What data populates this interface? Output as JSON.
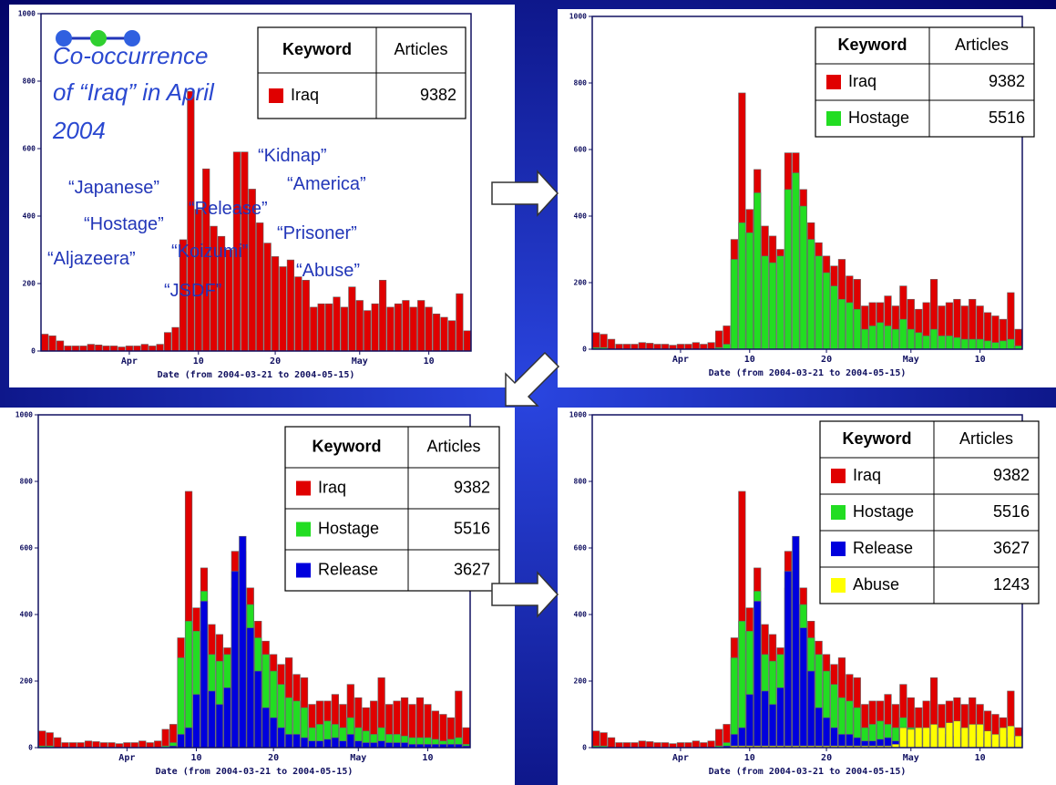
{
  "chart_data": [
    {
      "type": "bar",
      "title": [
        "Co-occurrence",
        "of “Iraq” in April",
        "2004"
      ],
      "annotations": [
        "“Japanese”",
        "“Hostage”",
        "“Aljazeera”",
        "“Koizumi”",
        "“JSDF”",
        "“Release”",
        "“Kidnap”",
        "“America”",
        "“Prisoner”",
        "“Abuse”"
      ],
      "x_label": "Date (from 2004-03-21 to 2004-05-15)",
      "legend_header": [
        "Keyword",
        "Articles"
      ],
      "categories": [
        null,
        null,
        null,
        null,
        null,
        null,
        null,
        null,
        null,
        null,
        null,
        "Apr",
        null,
        null,
        null,
        null,
        null,
        null,
        null,
        null,
        "10",
        null,
        null,
        null,
        null,
        null,
        null,
        null,
        null,
        null,
        "20",
        null,
        null,
        null,
        null,
        null,
        null,
        null,
        null,
        null,
        null,
        "May",
        null,
        null,
        null,
        null,
        null,
        null,
        null,
        null,
        "10",
        null,
        null,
        null,
        null,
        null
      ],
      "ylim": [
        0,
        1000
      ],
      "yticks": [
        0,
        200,
        400,
        600,
        800,
        1000
      ],
      "series": [
        {
          "name": "Iraq",
          "color": "#e00000",
          "total": 9382,
          "values": [
            50,
            45,
            30,
            15,
            15,
            15,
            20,
            18,
            15,
            15,
            12,
            15,
            15,
            20,
            15,
            20,
            55,
            70,
            330,
            770,
            420,
            540,
            370,
            340,
            300,
            590,
            590,
            480,
            380,
            320,
            280,
            250,
            270,
            220,
            210,
            130,
            140,
            140,
            160,
            130,
            190,
            150,
            120,
            140,
            210,
            130,
            140,
            150,
            130,
            150,
            130,
            110,
            100,
            90,
            170,
            60
          ]
        }
      ]
    },
    {
      "type": "bar",
      "x_label": "Date (from 2004-03-21 to 2004-05-15)",
      "legend_header": [
        "Keyword",
        "Articles"
      ],
      "categories": [
        null,
        null,
        null,
        null,
        null,
        null,
        null,
        null,
        null,
        null,
        null,
        "Apr",
        null,
        null,
        null,
        null,
        null,
        null,
        null,
        null,
        "10",
        null,
        null,
        null,
        null,
        null,
        null,
        null,
        null,
        null,
        "20",
        null,
        null,
        null,
        null,
        null,
        null,
        null,
        null,
        null,
        null,
        "May",
        null,
        null,
        null,
        null,
        null,
        null,
        null,
        null,
        "10",
        null,
        null,
        null,
        null,
        null
      ],
      "ylim": [
        0,
        1000
      ],
      "yticks": [
        0,
        200,
        400,
        600,
        800,
        1000
      ],
      "series": [
        {
          "name": "Iraq",
          "color": "#e00000",
          "total": 9382,
          "values": [
            50,
            45,
            30,
            15,
            15,
            15,
            20,
            18,
            15,
            15,
            12,
            15,
            15,
            20,
            15,
            20,
            55,
            70,
            330,
            770,
            420,
            540,
            370,
            340,
            300,
            590,
            590,
            480,
            380,
            320,
            280,
            250,
            270,
            220,
            210,
            130,
            140,
            140,
            160,
            130,
            190,
            150,
            120,
            140,
            210,
            130,
            140,
            150,
            130,
            150,
            130,
            110,
            100,
            90,
            170,
            60
          ]
        },
        {
          "name": "Hostage",
          "color": "#22dd22",
          "total": 5516,
          "values": [
            5,
            5,
            0,
            0,
            0,
            0,
            0,
            0,
            0,
            0,
            0,
            0,
            0,
            0,
            0,
            0,
            5,
            15,
            270,
            380,
            350,
            470,
            280,
            260,
            280,
            480,
            530,
            430,
            330,
            280,
            230,
            190,
            150,
            140,
            120,
            60,
            70,
            80,
            70,
            60,
            90,
            60,
            50,
            40,
            60,
            40,
            40,
            35,
            30,
            30,
            30,
            25,
            20,
            25,
            30,
            10
          ]
        }
      ]
    },
    {
      "type": "bar",
      "x_label": "Date (from 2004-03-21 to 2004-05-15)",
      "legend_header": [
        "Keyword",
        "Articles"
      ],
      "categories": [
        null,
        null,
        null,
        null,
        null,
        null,
        null,
        null,
        null,
        null,
        null,
        "Apr",
        null,
        null,
        null,
        null,
        null,
        null,
        null,
        null,
        "10",
        null,
        null,
        null,
        null,
        null,
        null,
        null,
        null,
        null,
        "20",
        null,
        null,
        null,
        null,
        null,
        null,
        null,
        null,
        null,
        null,
        "May",
        null,
        null,
        null,
        null,
        null,
        null,
        null,
        null,
        "10",
        null,
        null,
        null,
        null,
        null
      ],
      "ylim": [
        0,
        1000
      ],
      "yticks": [
        0,
        200,
        400,
        600,
        800,
        1000
      ],
      "series": [
        {
          "name": "Iraq",
          "color": "#e00000",
          "total": 9382,
          "values": [
            50,
            45,
            30,
            15,
            15,
            15,
            20,
            18,
            15,
            15,
            12,
            15,
            15,
            20,
            15,
            20,
            55,
            70,
            330,
            770,
            420,
            540,
            370,
            340,
            300,
            590,
            590,
            480,
            380,
            320,
            280,
            250,
            270,
            220,
            210,
            130,
            140,
            140,
            160,
            130,
            190,
            150,
            120,
            140,
            210,
            130,
            140,
            150,
            130,
            150,
            130,
            110,
            100,
            90,
            170,
            60
          ]
        },
        {
          "name": "Hostage",
          "color": "#22dd22",
          "total": 5516,
          "values": [
            5,
            5,
            0,
            0,
            0,
            0,
            0,
            0,
            0,
            0,
            0,
            0,
            0,
            0,
            0,
            0,
            5,
            15,
            270,
            380,
            350,
            470,
            280,
            260,
            280,
            480,
            530,
            430,
            330,
            280,
            230,
            190,
            150,
            140,
            120,
            60,
            70,
            80,
            70,
            60,
            90,
            60,
            50,
            40,
            60,
            40,
            40,
            35,
            30,
            30,
            30,
            25,
            20,
            25,
            30,
            10
          ]
        },
        {
          "name": "Release",
          "color": "#0000dd",
          "total": 3627,
          "values": [
            0,
            0,
            0,
            0,
            0,
            0,
            0,
            0,
            0,
            0,
            0,
            0,
            0,
            0,
            0,
            0,
            0,
            5,
            40,
            60,
            160,
            440,
            170,
            130,
            180,
            530,
            635,
            360,
            230,
            120,
            90,
            60,
            40,
            40,
            30,
            20,
            20,
            25,
            30,
            20,
            40,
            20,
            15,
            15,
            20,
            15,
            15,
            15,
            10,
            10,
            10,
            10,
            10,
            10,
            10,
            5
          ]
        }
      ]
    },
    {
      "type": "bar",
      "x_label": "Date (from 2004-03-21 to 2004-05-15)",
      "legend_header": [
        "Keyword",
        "Articles"
      ],
      "categories": [
        null,
        null,
        null,
        null,
        null,
        null,
        null,
        null,
        null,
        null,
        null,
        "Apr",
        null,
        null,
        null,
        null,
        null,
        null,
        null,
        null,
        "10",
        null,
        null,
        null,
        null,
        null,
        null,
        null,
        null,
        null,
        "20",
        null,
        null,
        null,
        null,
        null,
        null,
        null,
        null,
        null,
        null,
        "May",
        null,
        null,
        null,
        null,
        null,
        null,
        null,
        null,
        "10",
        null,
        null,
        null,
        null,
        null
      ],
      "ylim": [
        0,
        1000
      ],
      "yticks": [
        0,
        200,
        400,
        600,
        800,
        1000
      ],
      "series": [
        {
          "name": "Iraq",
          "color": "#e00000",
          "total": 9382,
          "values": [
            50,
            45,
            30,
            15,
            15,
            15,
            20,
            18,
            15,
            15,
            12,
            15,
            15,
            20,
            15,
            20,
            55,
            70,
            330,
            770,
            420,
            540,
            370,
            340,
            300,
            590,
            590,
            480,
            380,
            320,
            280,
            250,
            270,
            220,
            210,
            130,
            140,
            140,
            160,
            130,
            190,
            150,
            120,
            140,
            210,
            130,
            140,
            150,
            130,
            150,
            130,
            110,
            100,
            90,
            170,
            60
          ]
        },
        {
          "name": "Hostage",
          "color": "#22dd22",
          "total": 5516,
          "values": [
            5,
            5,
            0,
            0,
            0,
            0,
            0,
            0,
            0,
            0,
            0,
            0,
            0,
            0,
            0,
            0,
            5,
            15,
            270,
            380,
            350,
            470,
            280,
            260,
            280,
            480,
            530,
            430,
            330,
            280,
            230,
            190,
            150,
            140,
            120,
            60,
            70,
            80,
            70,
            60,
            90,
            60,
            50,
            40,
            60,
            40,
            40,
            35,
            30,
            30,
            30,
            25,
            20,
            25,
            30,
            10
          ]
        },
        {
          "name": "Release",
          "color": "#0000dd",
          "total": 3627,
          "values": [
            0,
            0,
            0,
            0,
            0,
            0,
            0,
            0,
            0,
            0,
            0,
            0,
            0,
            0,
            0,
            0,
            0,
            5,
            40,
            60,
            160,
            440,
            170,
            130,
            180,
            530,
            635,
            360,
            230,
            120,
            90,
            60,
            40,
            40,
            30,
            20,
            20,
            25,
            30,
            20,
            40,
            20,
            15,
            15,
            20,
            15,
            15,
            15,
            10,
            10,
            10,
            10,
            10,
            10,
            10,
            5
          ]
        },
        {
          "name": "Abuse",
          "color": "#ffff00",
          "total": 1243,
          "values": [
            0,
            0,
            0,
            0,
            0,
            0,
            0,
            0,
            0,
            0,
            0,
            0,
            0,
            0,
            0,
            0,
            0,
            0,
            5,
            5,
            5,
            5,
            5,
            5,
            5,
            5,
            5,
            5,
            5,
            5,
            5,
            5,
            5,
            5,
            5,
            5,
            5,
            5,
            5,
            10,
            60,
            55,
            60,
            60,
            70,
            60,
            75,
            80,
            60,
            70,
            70,
            50,
            40,
            60,
            65,
            35
          ]
        }
      ]
    }
  ]
}
